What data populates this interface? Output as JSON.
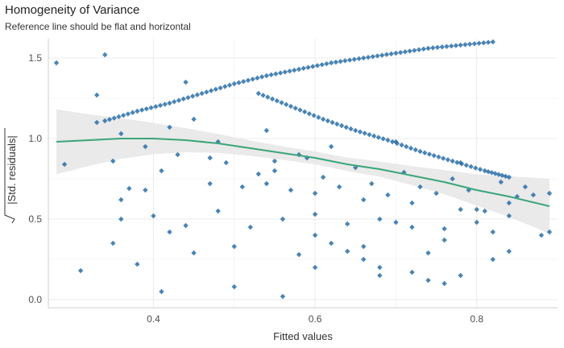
{
  "chart_data": {
    "type": "scatter",
    "title": "Homogeneity of Variance",
    "subtitle": "Reference line should be flat and horizontal",
    "xlabel": "Fitted values",
    "ylabel_radicand": "|Std. residuals|",
    "xlim": [
      0.27,
      0.9
    ],
    "ylim": [
      -0.05,
      1.62
    ],
    "x_ticks": [
      0.4,
      0.6,
      0.8
    ],
    "x_tick_labels": [
      "0.4",
      "0.6",
      "0.8"
    ],
    "y_ticks": [
      0.0,
      0.5,
      1.0,
      1.5
    ],
    "y_tick_labels": [
      "0.0",
      "0.5",
      "1.0",
      "1.5"
    ],
    "grid": true,
    "legend": "none",
    "point_color": "#2a6fa8",
    "smooth_color": "#3aa57a",
    "band_color": "#e6e6e6",
    "series": [
      {
        "role": "points",
        "x": [
          0.28,
          0.29,
          0.31,
          0.33,
          0.34,
          0.35,
          0.36,
          0.37,
          0.38,
          0.39,
          0.41,
          0.42,
          0.44,
          0.45,
          0.47,
          0.5,
          0.55,
          0.56,
          0.58,
          0.6,
          0.62,
          0.64,
          0.66,
          0.68,
          0.7,
          0.72,
          0.74,
          0.76,
          0.78,
          0.8,
          0.82,
          0.84,
          0.86,
          0.89,
          0.33,
          0.36,
          0.39,
          0.42,
          0.45,
          0.48,
          0.51,
          0.54,
          0.57,
          0.6,
          0.63,
          0.66,
          0.69,
          0.72,
          0.75,
          0.78,
          0.81,
          0.84,
          0.87,
          0.36,
          0.4,
          0.44,
          0.48,
          0.52,
          0.56,
          0.6,
          0.64,
          0.68,
          0.72,
          0.76,
          0.8,
          0.84,
          0.88,
          0.35,
          0.41,
          0.47,
          0.53,
          0.59,
          0.65,
          0.71,
          0.77,
          0.83,
          0.89,
          0.43,
          0.49,
          0.55,
          0.61,
          0.67,
          0.73,
          0.79,
          0.85,
          0.5,
          0.58,
          0.66,
          0.74,
          0.82,
          0.54,
          0.62,
          0.7,
          0.78,
          0.6,
          0.68,
          0.76
        ],
        "y": [
          1.47,
          0.84,
          0.18,
          1.27,
          1.52,
          0.35,
          0.5,
          0.69,
          0.22,
          0.68,
          0.05,
          0.42,
          1.35,
          0.29,
          0.88,
          0.08,
          0.86,
          0.02,
          0.9,
          0.4,
          0.35,
          0.3,
          0.25,
          0.2,
          0.48,
          0.17,
          0.12,
          0.37,
          0.15,
          0.56,
          0.42,
          0.3,
          0.7,
          0.42,
          1.1,
          1.03,
          0.95,
          1.07,
          1.12,
          0.98,
          0.7,
          0.72,
          0.68,
          0.66,
          0.7,
          0.62,
          0.65,
          0.6,
          0.66,
          0.56,
          0.55,
          0.6,
          0.65,
          0.62,
          0.52,
          0.46,
          0.55,
          0.45,
          0.5,
          0.53,
          0.47,
          0.5,
          0.45,
          0.44,
          0.48,
          0.52,
          0.4,
          0.86,
          0.8,
          0.72,
          0.78,
          0.88,
          0.82,
          0.79,
          0.75,
          0.73,
          0.66,
          0.9,
          0.85,
          0.8,
          0.76,
          0.72,
          0.7,
          0.68,
          0.64,
          0.33,
          0.28,
          0.33,
          0.29,
          0.25,
          1.05,
          0.95,
          0.98,
          0.85,
          0.2,
          0.15,
          0.1
        ]
      },
      {
        "role": "band-upper-line",
        "x": [
          0.34,
          0.38,
          0.42,
          0.46,
          0.5,
          0.54,
          0.58,
          0.62,
          0.66,
          0.7,
          0.74,
          0.78,
          0.82
        ],
        "y": [
          1.11,
          1.17,
          1.22,
          1.28,
          1.34,
          1.39,
          1.43,
          1.47,
          1.5,
          1.53,
          1.56,
          1.58,
          1.6
        ]
      },
      {
        "role": "band-lower-line",
        "x": [
          0.53,
          0.57,
          0.61,
          0.65,
          0.69,
          0.73,
          0.77,
          0.81,
          0.84
        ],
        "y": [
          1.28,
          1.2,
          1.12,
          1.05,
          0.99,
          0.92,
          0.86,
          0.8,
          0.76
        ]
      },
      {
        "role": "loess-fit",
        "x": [
          0.28,
          0.32,
          0.36,
          0.4,
          0.44,
          0.48,
          0.52,
          0.56,
          0.6,
          0.64,
          0.68,
          0.72,
          0.76,
          0.8,
          0.84,
          0.89
        ],
        "y": [
          0.98,
          0.99,
          1.0,
          1.0,
          0.99,
          0.97,
          0.94,
          0.91,
          0.88,
          0.84,
          0.81,
          0.77,
          0.73,
          0.68,
          0.64,
          0.58
        ]
      }
    ]
  }
}
